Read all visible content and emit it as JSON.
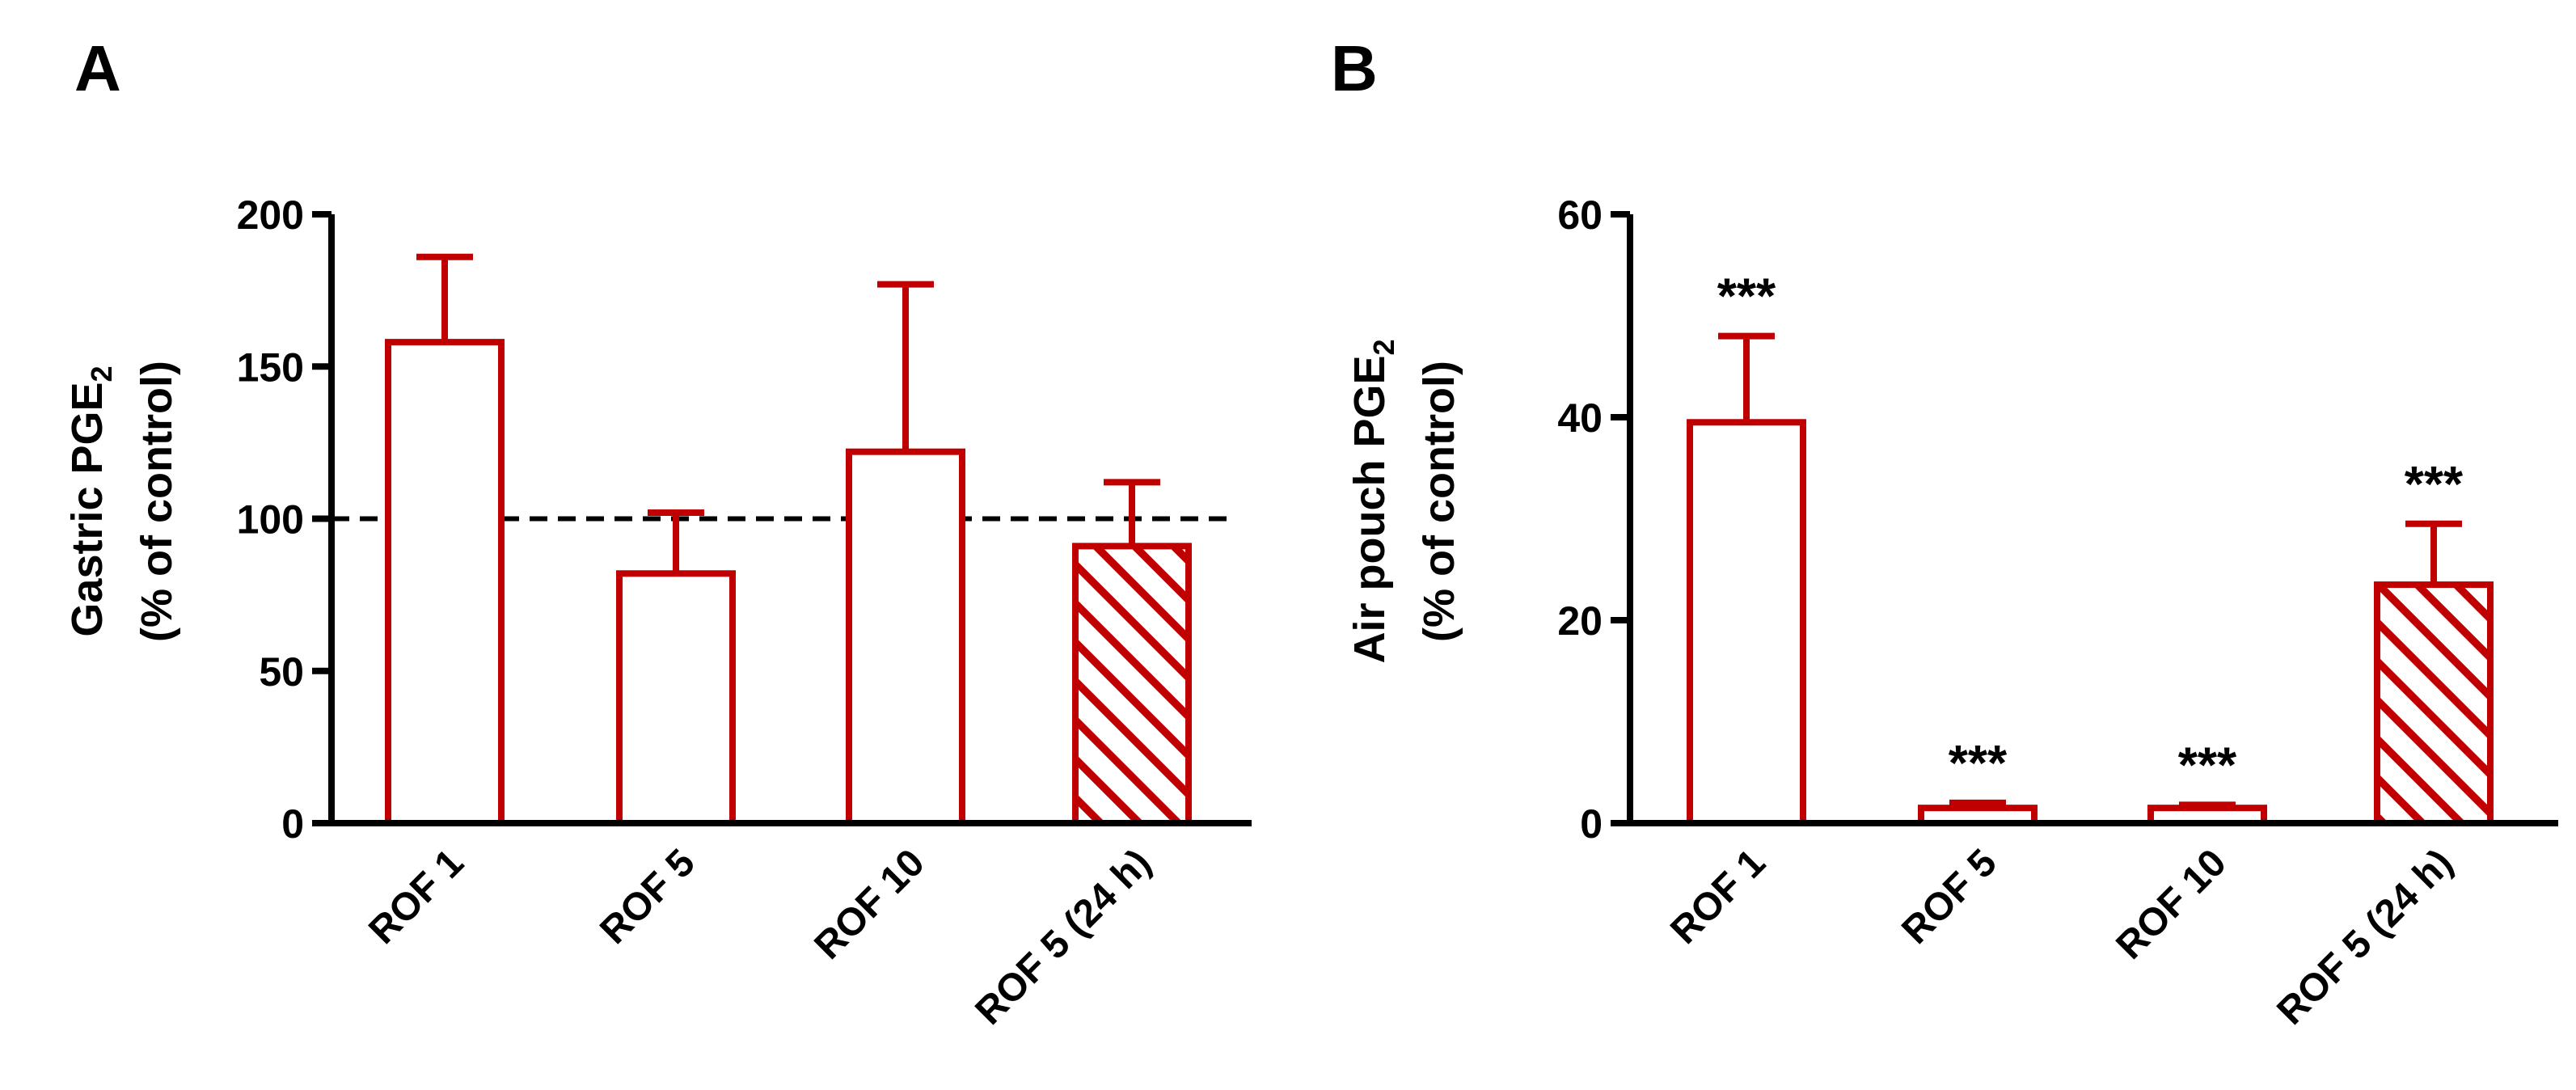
{
  "colors": {
    "bar": "#C00000",
    "axis": "#000000",
    "background": "#FFFFFF"
  },
  "chart_data": [
    {
      "panel": "A",
      "type": "bar",
      "categories": [
        "ROF 1",
        "ROF 5",
        "ROF 10",
        "ROF 5 (24 h)"
      ],
      "values": [
        158,
        82,
        122,
        91
      ],
      "errors": [
        28,
        20,
        55,
        21
      ],
      "hatched": [
        false,
        false,
        false,
        true
      ],
      "significance": [
        "",
        "",
        "",
        ""
      ],
      "ylabel_line1": "Gastric PGE",
      "ylabel_sub": "2",
      "ylabel_line2": "(% of control)",
      "ylim": [
        0,
        200
      ],
      "yticks": [
        0,
        50,
        100,
        150,
        200
      ],
      "reference_line": 100
    },
    {
      "panel": "B",
      "type": "bar",
      "categories": [
        "ROF 1",
        "ROF 5",
        "ROF 10",
        "ROF 5 (24 h)"
      ],
      "values": [
        39.5,
        1.5,
        1.5,
        23.5
      ],
      "errors": [
        8.5,
        0.5,
        0.3,
        6
      ],
      "hatched": [
        false,
        false,
        false,
        true
      ],
      "significance": [
        "***",
        "***",
        "***",
        "***"
      ],
      "ylabel_line1": "Air pouch PGE",
      "ylabel_sub": "2",
      "ylabel_line2": "(% of control)",
      "ylim": [
        0,
        60
      ],
      "yticks": [
        0,
        20,
        40,
        60
      ],
      "reference_line": null
    }
  ]
}
